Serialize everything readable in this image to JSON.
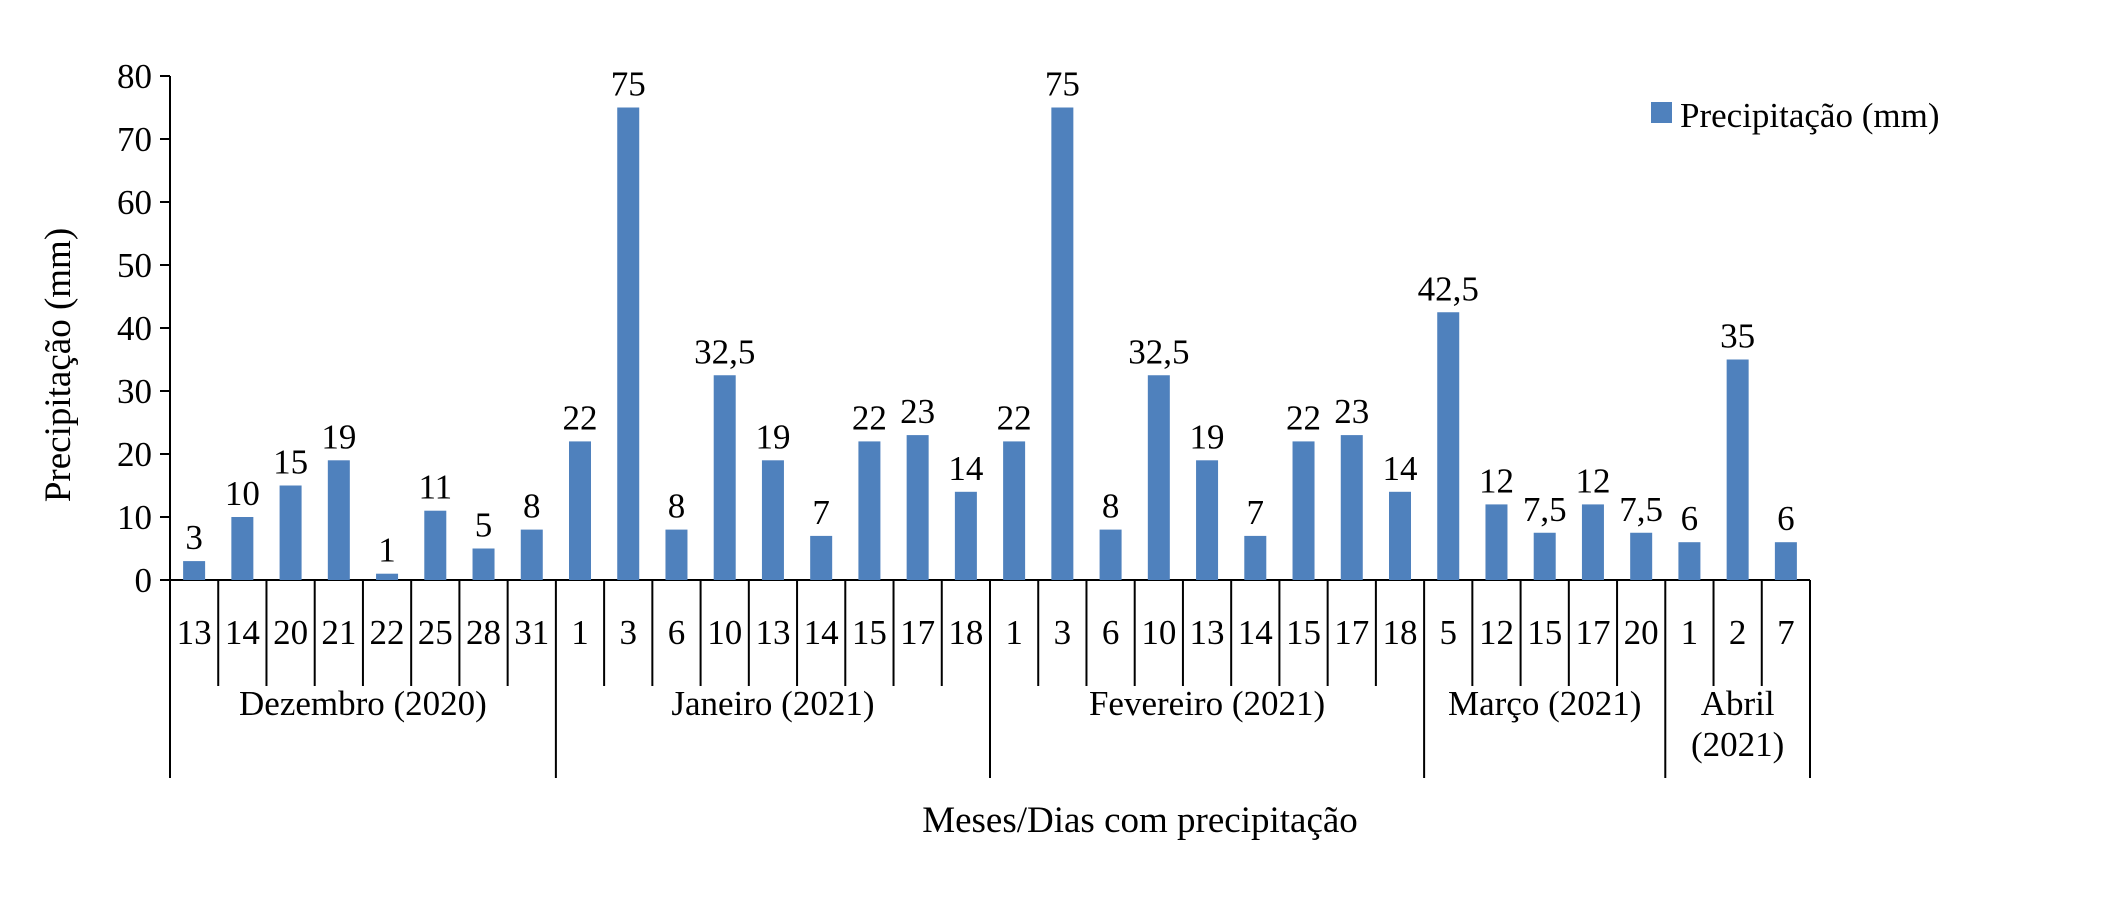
{
  "chart_data": {
    "type": "bar",
    "title": "",
    "xlabel": "Meses/Dias com precipitação",
    "ylabel": "Precipitação (mm)",
    "ylim": [
      0,
      80
    ],
    "yticks": [
      "0",
      "10",
      "20",
      "30",
      "40",
      "50",
      "60",
      "70",
      "80"
    ],
    "legend": {
      "position": "top-right",
      "label": "Precipitação (mm)"
    },
    "bar_color": "#4f81bd",
    "groups": [
      {
        "label": "Dezembro (2020)",
        "days": [
          "13",
          "14",
          "20",
          "21",
          "22",
          "25",
          "28",
          "31"
        ],
        "values": [
          3,
          10,
          15,
          19,
          1,
          11,
          5,
          8
        ],
        "value_labels": [
          "3",
          "10",
          "15",
          "19",
          "1",
          "11",
          "5",
          "8"
        ]
      },
      {
        "label": "Janeiro (2021)",
        "days": [
          "1",
          "3",
          "6",
          "10",
          "13",
          "14",
          "15",
          "17",
          "18"
        ],
        "values": [
          22,
          75,
          8,
          32.5,
          19,
          7,
          22,
          23,
          14
        ],
        "value_labels": [
          "22",
          "75",
          "8",
          "32,5",
          "19",
          "7",
          "22",
          "23",
          "14"
        ]
      },
      {
        "label": "Fevereiro (2021)",
        "days": [
          "1",
          "3",
          "6",
          "10",
          "13",
          "14",
          "15",
          "17",
          "18"
        ],
        "values": [
          22,
          75,
          8,
          32.5,
          19,
          7,
          22,
          23,
          14
        ],
        "value_labels": [
          "22",
          "75",
          "8",
          "32,5",
          "19",
          "7",
          "22",
          "23",
          "14"
        ]
      },
      {
        "label": "Março (2021)",
        "days": [
          "5",
          "12",
          "15",
          "17",
          "20"
        ],
        "values": [
          42.5,
          12,
          7.5,
          12,
          7.5
        ],
        "value_labels": [
          "42,5",
          "12",
          "7,5",
          "12",
          "7,5"
        ]
      },
      {
        "label": "Abril (2021)",
        "label_lines": [
          "Abril",
          "(2021)"
        ],
        "days": [
          "1",
          "2",
          "7"
        ],
        "values": [
          6,
          35,
          6
        ],
        "value_labels": [
          "6",
          "35",
          "6"
        ]
      }
    ]
  }
}
